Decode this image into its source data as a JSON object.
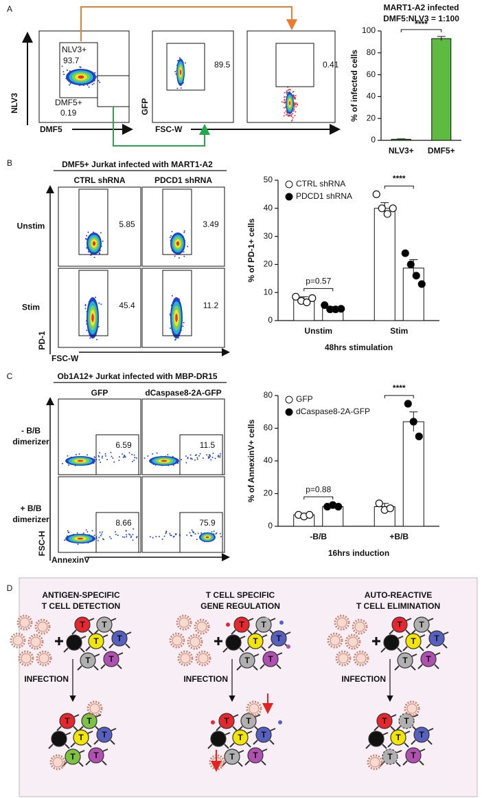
{
  "panel_labels": [
    "A",
    "B",
    "C",
    "D"
  ],
  "panel_a": {
    "plots": [
      {
        "y_label": "NLV3",
        "x_label": "DMF5",
        "gates": [
          {
            "name": "NLV3+",
            "value": 93.7
          },
          {
            "name": "DMF5+",
            "value": 0.19
          }
        ]
      },
      {
        "y_label": "GFP",
        "x_label": "FSC-W",
        "gates": [
          {
            "value": 89.5
          }
        ]
      },
      {
        "gates": [
          {
            "value": 0.41
          }
        ]
      }
    ]
  },
  "panel_b": {
    "title": "DMF5+ Jurkat infected with MART1-A2",
    "columns": [
      "CTRL shRNA",
      "PDCD1 shRNA"
    ],
    "rows": [
      [
        "Unstim"
      ],
      [
        "Stim"
      ]
    ],
    "gates": [
      [
        5.85,
        3.49
      ],
      [
        45.4,
        11.2
      ]
    ],
    "y_label": "PD-1",
    "x_label": "FSC-W"
  },
  "panel_c": {
    "title": "Ob1A12+ Jurkat infected with MBP-DR15",
    "columns": [
      "GFP",
      "dCaspase8-2A-GFP"
    ],
    "rows": [
      [
        "- B/B",
        "dimerizer"
      ],
      [
        "+ B/B",
        "dimerizer"
      ]
    ],
    "gates": [
      [
        6.59,
        11.5
      ],
      [
        8.66,
        75.9
      ]
    ],
    "y_label": "FSC-H",
    "x_label": "AnnexinV"
  },
  "panel_d": {
    "columns": [
      {
        "title": [
          "ANTIGEN-SPECIFIC",
          "T CELL DETECTION"
        ],
        "step": "INFECTION"
      },
      {
        "title": [
          "T CELL SPECIFIC",
          "GENE REGULATION"
        ],
        "step": "INFECTION"
      },
      {
        "title": [
          "AUTO-REACTIVE",
          "T CELL ELIMINATION"
        ],
        "step": "INFECTION"
      }
    ],
    "cell_letter": "T"
  },
  "chart_data": [
    {
      "type": "bar",
      "title": "MART1-A2 infected",
      "subtitle": "DMF5:NLV3 = 1:100",
      "y_label": "% of infected cells",
      "categories": [
        "NLV3+",
        "DMF5+"
      ],
      "values": [
        1,
        93
      ],
      "errors": [
        0.3,
        2
      ],
      "color": "#5dbb3f",
      "ylim": [
        0,
        100
      ],
      "yticks": [
        0,
        20,
        40,
        60,
        80,
        100
      ],
      "annotations": [
        "****"
      ]
    },
    {
      "type": "bar",
      "y_label": "% of PD-1+ cells",
      "x_label": "48hrs stimulation",
      "categories": [
        "Unstim",
        "Stim"
      ],
      "bar_fill": "#ffffff",
      "series": [
        {
          "name": "CTRL shRNA",
          "color": "#ffffff",
          "values": [
            7.5,
            40
          ],
          "errors": [
            1,
            2
          ],
          "points": [
            [
              8.5,
              7,
              6.5,
              8
            ],
            [
              45,
              40,
              38,
              40
            ]
          ]
        },
        {
          "name": "PDCD1 shRNA",
          "color": "#000000",
          "values": [
            4.5,
            18.7
          ],
          "errors": [
            0.5,
            3
          ],
          "points": [
            [
              5.5,
              4,
              4,
              4.2
            ],
            [
              24,
              20,
              16,
              13
            ]
          ]
        }
      ],
      "ylim": [
        0,
        50
      ],
      "yticks": [
        0,
        10,
        20,
        30,
        40,
        50
      ],
      "annotations": [
        "p=0.57",
        "****"
      ]
    },
    {
      "type": "bar",
      "y_label": "% of AnnexinV+ cells",
      "x_label": "16hrs induction",
      "categories": [
        "-B/B",
        "+B/B"
      ],
      "bar_fill": "#ffffff",
      "series": [
        {
          "name": "GFP",
          "color": "#ffffff",
          "values": [
            7,
            12
          ],
          "errors": [
            0.5,
            2
          ],
          "points": [
            [
              7,
              6,
              7
            ],
            [
              14,
              10,
              11
            ]
          ]
        },
        {
          "name": "dCaspase8-2A-GFP",
          "color": "#000000",
          "values": [
            12,
            64
          ],
          "errors": [
            0.5,
            6
          ],
          "points": [
            [
              12,
              13,
              12
            ],
            [
              75,
              64,
              55
            ]
          ]
        }
      ],
      "ylim": [
        0,
        80
      ],
      "yticks": [
        0,
        20,
        40,
        60,
        80
      ],
      "annotations": [
        "p=0.88",
        "****"
      ]
    }
  ]
}
